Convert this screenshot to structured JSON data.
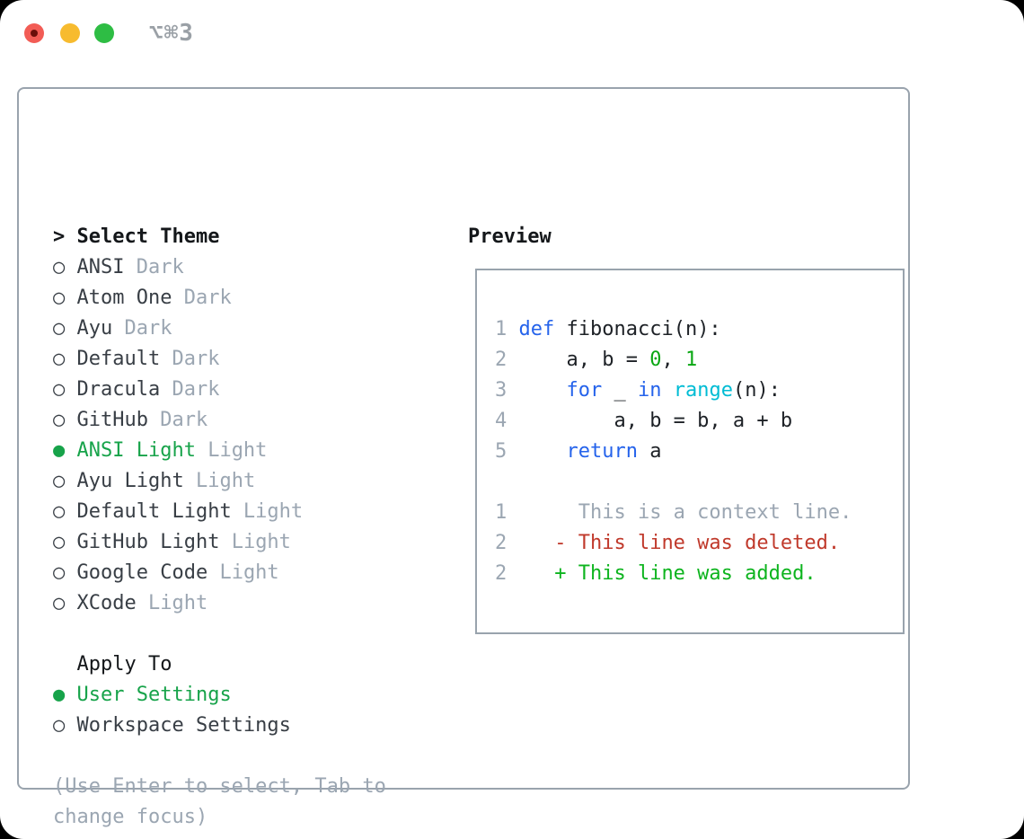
{
  "window": {
    "title": "⌥⌘3"
  },
  "icons": {
    "radio_selected": "●",
    "radio_unselected": "○",
    "header_caret": ">"
  },
  "theme_selector": {
    "header": "Select Theme",
    "items": [
      {
        "name": "ANSI",
        "variant": "Dark",
        "selected": false
      },
      {
        "name": "Atom One",
        "variant": "Dark",
        "selected": false
      },
      {
        "name": "Ayu",
        "variant": "Dark",
        "selected": false
      },
      {
        "name": "Default",
        "variant": "Dark",
        "selected": false
      },
      {
        "name": "Dracula",
        "variant": "Dark",
        "selected": false
      },
      {
        "name": "GitHub",
        "variant": "Dark",
        "selected": false
      },
      {
        "name": "ANSI Light",
        "variant": "Light",
        "selected": true
      },
      {
        "name": "Ayu Light",
        "variant": "Light",
        "selected": false
      },
      {
        "name": "Default Light",
        "variant": "Light",
        "selected": false
      },
      {
        "name": "GitHub Light",
        "variant": "Light",
        "selected": false
      },
      {
        "name": "Google Code",
        "variant": "Light",
        "selected": false
      },
      {
        "name": "XCode",
        "variant": "Light",
        "selected": false
      }
    ]
  },
  "apply_to": {
    "header": "Apply To",
    "options": [
      {
        "label": "User Settings",
        "selected": true
      },
      {
        "label": "Workspace Settings",
        "selected": false
      }
    ]
  },
  "hint": {
    "lines": [
      "(Use Enter to select, Tab to",
      "change focus)"
    ]
  },
  "preview": {
    "header": "Preview",
    "code_lines": [
      {
        "num": "1",
        "tokens": [
          {
            "t": "def",
            "c": "kw"
          },
          {
            "t": " fibonacci(n):",
            "c": "plain"
          }
        ]
      },
      {
        "num": "2",
        "tokens": [
          {
            "t": "    a, b = ",
            "c": "plain"
          },
          {
            "t": "0",
            "c": "num"
          },
          {
            "t": ", ",
            "c": "plain"
          },
          {
            "t": "1",
            "c": "num"
          }
        ]
      },
      {
        "num": "3",
        "tokens": [
          {
            "t": "    ",
            "c": "plain"
          },
          {
            "t": "for",
            "c": "kw"
          },
          {
            "t": " _ ",
            "c": "plain"
          },
          {
            "t": "in",
            "c": "kw"
          },
          {
            "t": " ",
            "c": "plain"
          },
          {
            "t": "range",
            "c": "fn"
          },
          {
            "t": "(n):",
            "c": "plain"
          }
        ]
      },
      {
        "num": "4",
        "tokens": [
          {
            "t": "        a, b = b, a + b",
            "c": "plain"
          }
        ]
      },
      {
        "num": "5",
        "tokens": [
          {
            "t": "    ",
            "c": "plain"
          },
          {
            "t": "return",
            "c": "kw"
          },
          {
            "t": " a",
            "c": "plain"
          }
        ]
      }
    ],
    "diff_lines": [
      {
        "num": "1",
        "sign": " ",
        "text": "This is a context line.",
        "kind": "context"
      },
      {
        "num": "2",
        "sign": "-",
        "text": "This line was deleted.",
        "kind": "deleted"
      },
      {
        "num": "2",
        "sign": "+",
        "text": "This line was added.",
        "kind": "added"
      }
    ]
  },
  "colors": {
    "accent_green": "#17a34a",
    "keyword_blue": "#2563eb",
    "builtin_cyan": "#00bcd4",
    "number_green": "#0aa713",
    "diff_added": "#0db41e",
    "diff_deleted": "#c0392b",
    "muted_gray": "#9ba6b2",
    "border_gray": "#99a3ad",
    "traffic_red": "#f25c55",
    "traffic_yellow": "#f7bb2f",
    "traffic_green": "#2ebd44"
  }
}
